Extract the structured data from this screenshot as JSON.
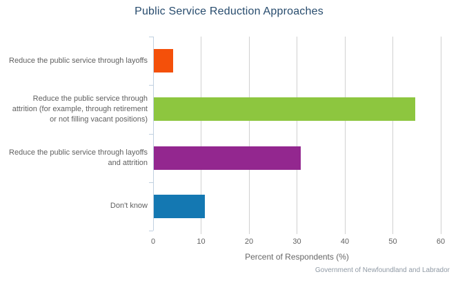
{
  "chart_data": {
    "type": "bar",
    "orientation": "horizontal",
    "title": "Public Service Reduction Approaches",
    "xlabel": "Percent of Respondents (%)",
    "ylabel": "",
    "categories": [
      "Reduce the public service through layoffs",
      "Reduce the public service through attrition (for example, through retirement or not filling vacant positions)",
      "Reduce the public service through layoffs and attrition",
      "Don't know"
    ],
    "values": [
      4,
      54.5,
      30.7,
      10.6
    ],
    "bar_colors": [
      "#f4500a",
      "#8dc63f",
      "#93278f",
      "#1478b2"
    ],
    "xlim": [
      0,
      60
    ],
    "x_ticks": [
      0,
      10,
      20,
      30,
      40,
      50,
      60
    ],
    "grid": true,
    "legend": "none",
    "credits": "Government of Newfoundland and Labrador"
  },
  "colors": {
    "background": "#ffffff",
    "title_text": "#274b6d",
    "label_text": "#606060",
    "axis_title_text": "#666666",
    "gridline": "#d0d0d0",
    "axis_line": "#c0d0e0",
    "credits_text": "#909aa5"
  }
}
